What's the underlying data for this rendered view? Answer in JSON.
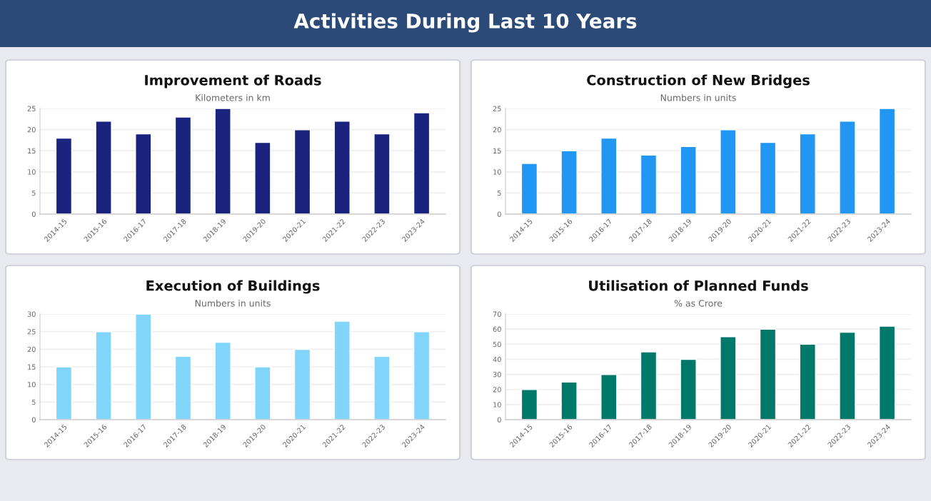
{
  "chart_data": [
    {
      "type": "bar",
      "title": "Improvement of Roads",
      "subtitle": "Kilometers in km",
      "annotations": [
        "Activities During Last 10 Years"
      ],
      "categories": [
        "2014-15",
        "2015-16",
        "2016-17",
        "2017-18",
        "2018-19",
        "2019-20",
        "2020-21",
        "2021-22",
        "2022-23",
        "2023-24"
      ],
      "values": [
        18,
        22,
        19,
        23,
        25,
        17,
        20,
        22,
        19,
        24
      ],
      "color": "#1a237e",
      "ylim": [
        0,
        25
      ],
      "yticks": [
        0,
        5,
        10,
        15,
        20,
        25
      ],
      "grid": "y"
    },
    {
      "type": "bar",
      "title": "Construction of New Bridges",
      "subtitle": "Numbers in units",
      "categories": [
        "2014-15",
        "2015-16",
        "2016-17",
        "2017-18",
        "2018-19",
        "2019-20",
        "2020-21",
        "2021-22",
        "2022-23",
        "2023-24"
      ],
      "values": [
        12,
        15,
        18,
        14,
        16,
        20,
        17,
        19,
        22,
        25
      ],
      "color": "#2196f3",
      "ylim": [
        0,
        25
      ],
      "yticks": [
        0,
        5,
        10,
        15,
        20,
        25
      ],
      "grid": "y"
    },
    {
      "type": "bar",
      "title": "Execution of Buildings",
      "subtitle": "Numbers in units",
      "categories": [
        "2014-15",
        "2015-16",
        "2016-17",
        "2017-18",
        "2018-19",
        "2019-20",
        "2020-21",
        "2021-22",
        "2022-23",
        "2023-24"
      ],
      "values": [
        15,
        25,
        30,
        18,
        22,
        15,
        20,
        28,
        18,
        25
      ],
      "color": "#81d4fa",
      "ylim": [
        0,
        30
      ],
      "yticks": [
        0,
        5,
        10,
        15,
        20,
        25,
        30
      ],
      "grid": "y"
    },
    {
      "type": "bar",
      "title": "Utilisation of Planned Funds",
      "subtitle": "% as Crore",
      "categories": [
        "2014-15",
        "2015-16",
        "2016-17",
        "2017-18",
        "2018-19",
        "2019-20",
        "2020-21",
        "2021-22",
        "2022-23",
        "2023-24"
      ],
      "values": [
        20,
        25,
        30,
        45,
        40,
        55,
        60,
        50,
        58,
        62
      ],
      "color": "#00796b",
      "ylim": [
        0,
        70
      ],
      "yticks": [
        0,
        10,
        20,
        30,
        40,
        50,
        60,
        70
      ],
      "grid": "y"
    }
  ]
}
